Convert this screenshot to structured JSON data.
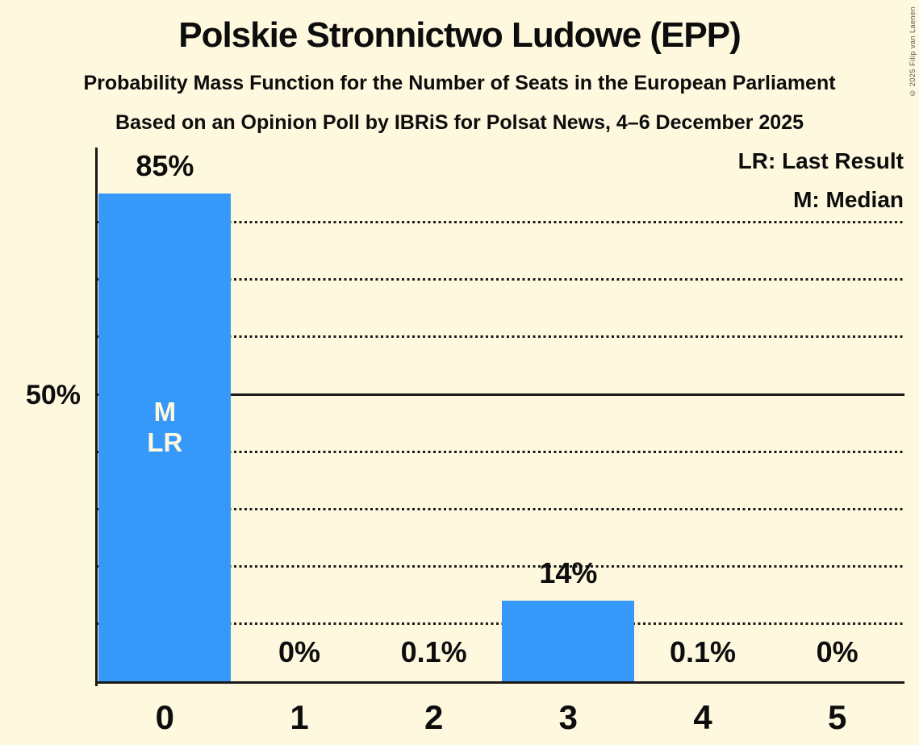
{
  "header": {
    "title": "Polskie Stronnictwo Ludowe (EPP)",
    "subtitle": "Probability Mass Function for the Number of Seats in the European Parliament",
    "source_line": "Based on an Opinion Poll by IBRiS for Polsat News, 4–6 December 2025"
  },
  "legend": {
    "last_result": "LR: Last Result",
    "median": "M: Median"
  },
  "copyright": "© 2025 Filip van Laenen",
  "colors": {
    "background": "#FDF8DE",
    "bar": "#3699FA",
    "text": "#0D0D0D",
    "grid": "#1A1A1A",
    "bar_annotation_text": "#FDF8DE",
    "copyright_text": "#555555"
  },
  "chart_data": {
    "type": "bar",
    "title": "Polskie Stronnictwo Ludowe (EPP)",
    "categories": [
      "0",
      "1",
      "2",
      "3",
      "4",
      "5"
    ],
    "values": [
      85,
      0,
      0.1,
      14,
      0.1,
      0
    ],
    "value_labels": [
      "85%",
      "0%",
      "0.1%",
      "14%",
      "0.1%",
      "0%"
    ],
    "bar_annotations": {
      "0": [
        "M",
        "LR"
      ]
    },
    "y_tick": {
      "value": 50,
      "label": "50%"
    },
    "ylim": [
      0,
      93
    ],
    "solid_gridline_pct": 50,
    "dotted_gridlines_pct": [
      10,
      20,
      30,
      40,
      60,
      70,
      80
    ],
    "grid": "horizontal",
    "legend_position": "top-right",
    "xlabel": "",
    "ylabel": ""
  }
}
